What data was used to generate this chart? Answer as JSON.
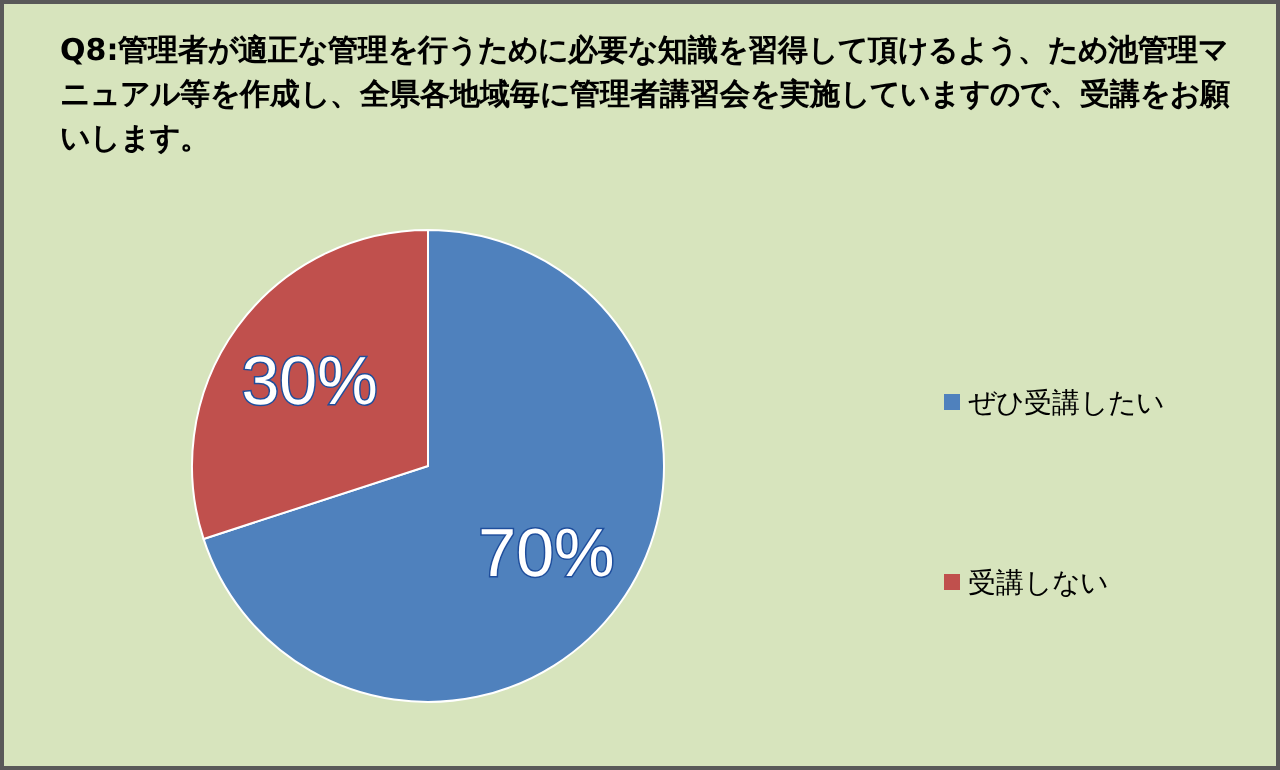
{
  "chart_data": {
    "type": "pie",
    "title": "Q8:管理者が適正な管理を行うために必要な知識を習得して頂けるよう、ため池管理マニュアル等を作成し、全県各地域毎に管理者講習会を実施していますので、受講をお願いします。",
    "categories": [
      "ぜひ受講したい",
      "受講しない"
    ],
    "values": [
      70,
      30
    ],
    "colors": [
      "#4f81bd",
      "#c0504d"
    ],
    "value_labels": [
      "70%",
      "30%"
    ],
    "legend": "right"
  }
}
